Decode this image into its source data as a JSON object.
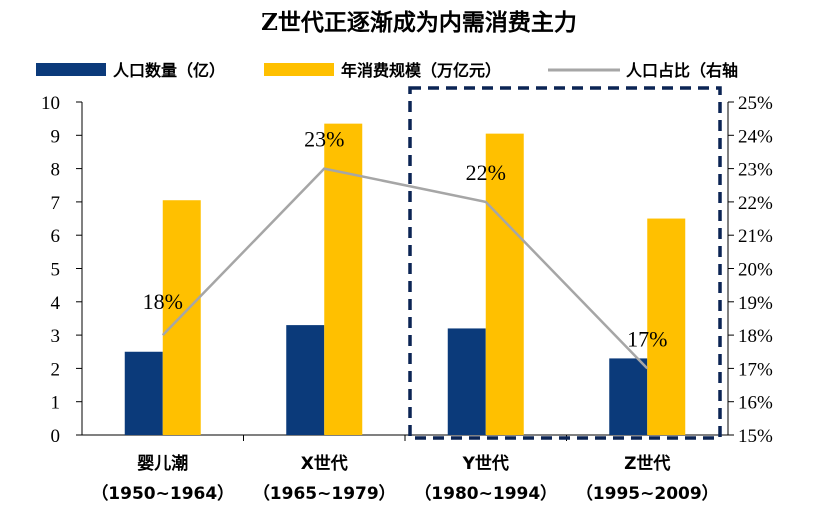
{
  "chart_data": {
    "type": "bar",
    "title": "Z世代正逐渐成为内需消费主力",
    "categories": [
      {
        "name": "婴儿潮",
        "years": "（1950~1964）"
      },
      {
        "name": "X世代",
        "years": "（1965~1979）"
      },
      {
        "name": "Y世代",
        "years": "（1980~1994）"
      },
      {
        "name": "Z世代",
        "years": "（1995~2009）"
      }
    ],
    "series": [
      {
        "name": "人口数量（亿）",
        "type": "bar",
        "axis": "left",
        "color": "#0b3a7a",
        "values": [
          2.5,
          3.3,
          3.2,
          2.3
        ]
      },
      {
        "name": "年消费规模（万亿元）",
        "type": "bar",
        "axis": "left",
        "color": "#ffc000",
        "values": [
          7.05,
          9.35,
          9.05,
          6.5
        ]
      },
      {
        "name": "人口占比（右轴",
        "type": "line",
        "axis": "right",
        "color": "#a6a6a6",
        "values": [
          18,
          23,
          22,
          17
        ],
        "labels": [
          "18%",
          "23%",
          "22%",
          "17%"
        ]
      }
    ],
    "y_left": {
      "min": 0,
      "max": 10,
      "step": 1,
      "ticks": [
        "0",
        "1",
        "2",
        "3",
        "4",
        "5",
        "6",
        "7",
        "8",
        "9",
        "10"
      ]
    },
    "y_right": {
      "min": 15,
      "max": 25,
      "step": 1,
      "ticks": [
        "15%",
        "16%",
        "17%",
        "18%",
        "19%",
        "20%",
        "21%",
        "22%",
        "23%",
        "24%",
        "25%"
      ]
    },
    "highlight": {
      "from_category": 2,
      "to_category": 3,
      "style": "dashed",
      "color": "#0b2454"
    },
    "legend_position": "top"
  }
}
